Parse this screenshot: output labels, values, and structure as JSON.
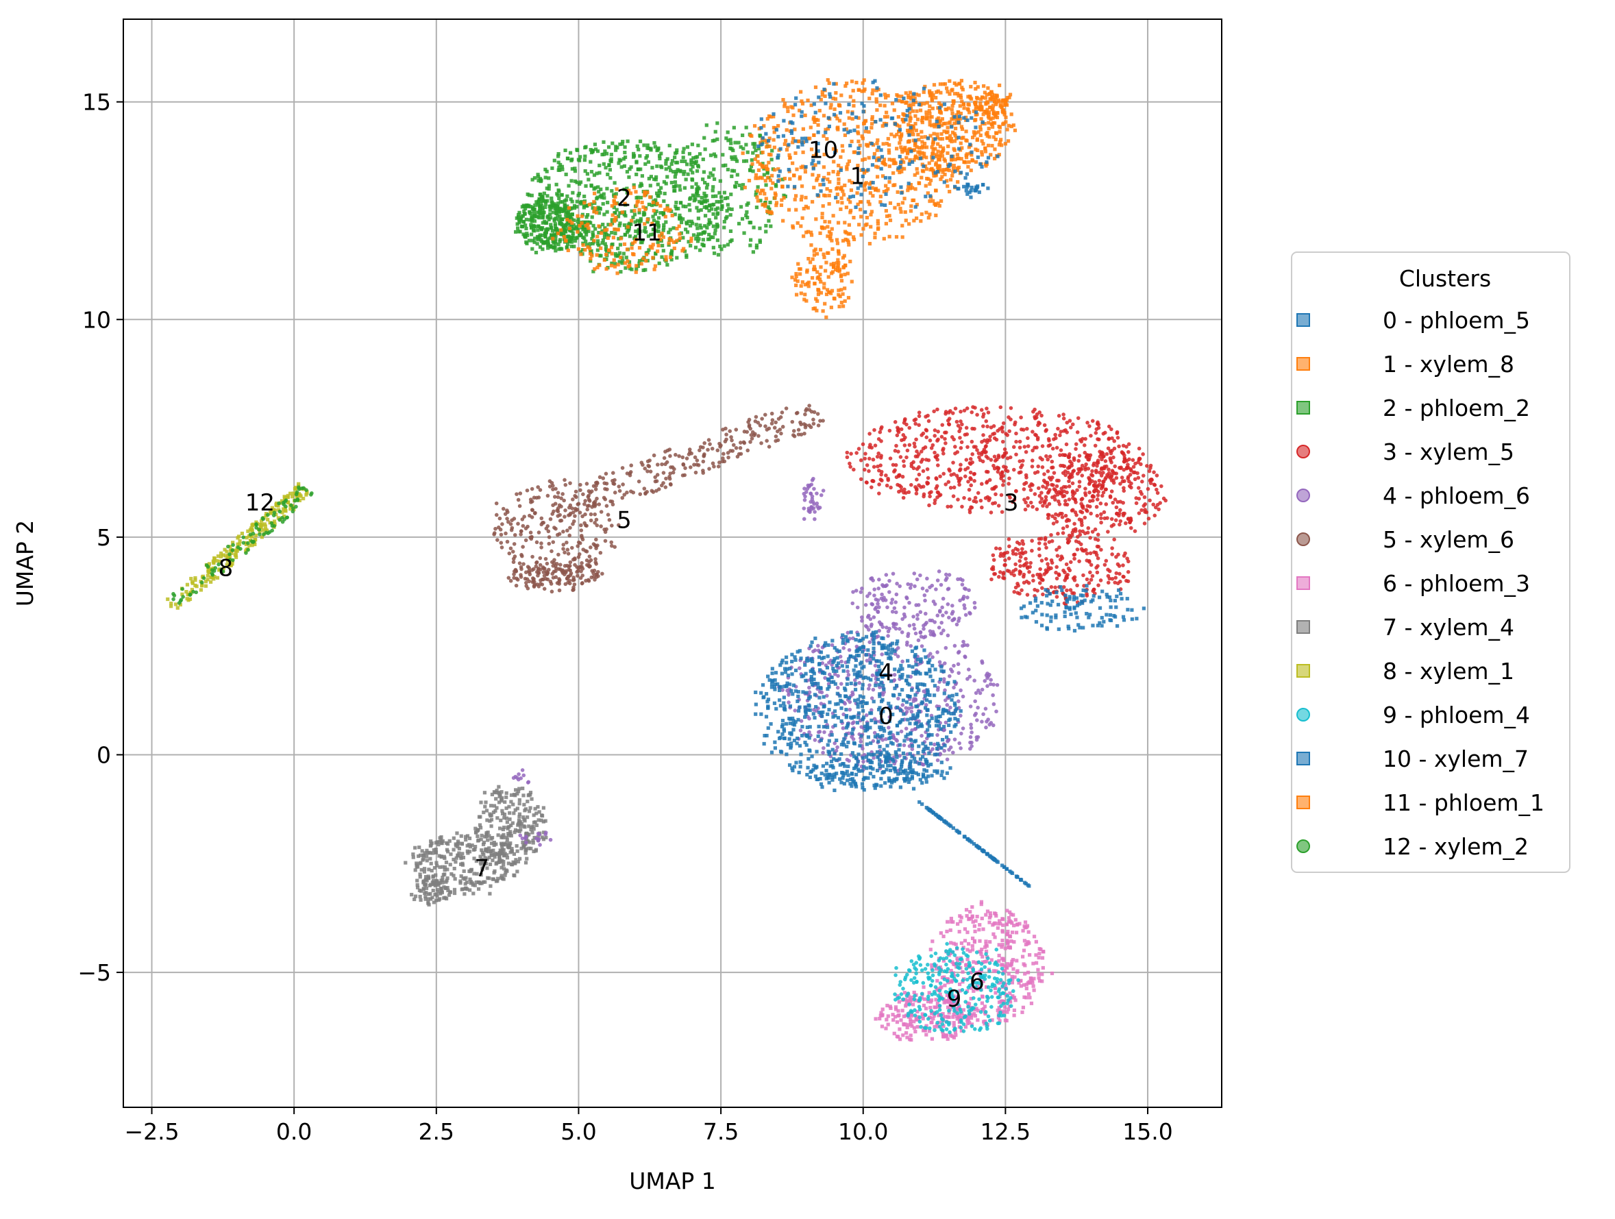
{
  "chart_data": {
    "type": "scatter",
    "xlabel": "UMAP 1",
    "ylabel": "UMAP 2",
    "xlim": [
      -3.0,
      16.3
    ],
    "ylim": [
      -8.1,
      16.9
    ],
    "xticks": [
      -2.5,
      0.0,
      2.5,
      5.0,
      7.5,
      10.0,
      12.5,
      15.0
    ],
    "xtick_labels": [
      "−2.5",
      "0.0",
      "2.5",
      "5.0",
      "7.5",
      "10.0",
      "12.5",
      "15.0"
    ],
    "yticks": [
      -5,
      0,
      5,
      10,
      15
    ],
    "ytick_labels": [
      "−5",
      "0",
      "5",
      "10",
      "15"
    ],
    "grid": true,
    "legend_title": "Clusters",
    "legend_position": "right",
    "series": [
      {
        "id": "0",
        "name": "0 - phloem_5",
        "marker": "square",
        "color": "#1f77b4",
        "label_xy": [
          10.4,
          0.9
        ]
      },
      {
        "id": "1",
        "name": "1 - xylem_8",
        "marker": "square",
        "color": "#ff7f0e",
        "label_xy": [
          9.9,
          13.3
        ]
      },
      {
        "id": "2",
        "name": "2 - phloem_2",
        "marker": "square",
        "color": "#2ca02c",
        "label_xy": [
          5.8,
          12.8
        ]
      },
      {
        "id": "3",
        "name": "3 - xylem_5",
        "marker": "circle",
        "color": "#d62728",
        "label_xy": [
          12.6,
          5.8
        ]
      },
      {
        "id": "4",
        "name": "4 - phloem_6",
        "marker": "circle",
        "color": "#9467bd",
        "label_xy": [
          10.4,
          1.9
        ]
      },
      {
        "id": "5",
        "name": "5 - xylem_6",
        "marker": "circle",
        "color": "#8c564b",
        "label_xy": [
          5.8,
          5.4
        ]
      },
      {
        "id": "6",
        "name": "6 - phloem_3",
        "marker": "square",
        "color": "#e377c2",
        "label_xy": [
          12.0,
          -5.2
        ]
      },
      {
        "id": "7",
        "name": "7 - xylem_4",
        "marker": "square",
        "color": "#7f7f7f",
        "label_xy": [
          3.3,
          -2.6
        ]
      },
      {
        "id": "8",
        "name": "8 - xylem_1",
        "marker": "square",
        "color": "#bcbd22",
        "label_xy": [
          -1.2,
          4.3
        ]
      },
      {
        "id": "9",
        "name": "9 - phloem_4",
        "marker": "circle",
        "color": "#17becf",
        "label_xy": [
          11.6,
          -5.6
        ]
      },
      {
        "id": "10",
        "name": "10 - xylem_7",
        "marker": "square",
        "color": "#1f77b4",
        "label_xy": [
          9.3,
          13.9
        ]
      },
      {
        "id": "11",
        "name": "11 - phloem_1",
        "marker": "square",
        "color": "#ff7f0e",
        "label_xy": [
          6.2,
          12.0
        ]
      },
      {
        "id": "12",
        "name": "12 - xylem_2",
        "marker": "circle",
        "color": "#2ca02c",
        "label_xy": [
          -0.6,
          5.8
        ]
      }
    ],
    "regions": [
      {
        "series": "8",
        "points": 220,
        "shape": "line",
        "x0": -2.15,
        "y0": 3.4,
        "x1": 0.2,
        "y1": 6.1,
        "w": 0.35
      },
      {
        "series": "12",
        "points": 90,
        "shape": "line",
        "x0": -2.1,
        "y0": 3.5,
        "x1": 0.25,
        "y1": 6.1,
        "w": 0.35
      },
      {
        "series": "2",
        "points": 700,
        "shape": "ellipse",
        "cx": 5.8,
        "cy": 12.6,
        "rx": 1.8,
        "ry": 1.5
      },
      {
        "series": "2",
        "points": 260,
        "shape": "ellipse",
        "cx": 4.5,
        "cy": 12.2,
        "rx": 0.6,
        "ry": 0.6
      },
      {
        "series": "2",
        "points": 220,
        "shape": "ellipse",
        "cx": 7.6,
        "cy": 13.0,
        "rx": 1.0,
        "ry": 1.6
      },
      {
        "series": "11",
        "points": 160,
        "shape": "ellipse",
        "cx": 5.8,
        "cy": 12.0,
        "rx": 1.2,
        "ry": 1.0
      },
      {
        "series": "1",
        "points": 650,
        "shape": "ellipse",
        "cx": 9.8,
        "cy": 13.6,
        "rx": 1.9,
        "ry": 1.9
      },
      {
        "series": "1",
        "points": 380,
        "shape": "ellipse",
        "cx": 11.6,
        "cy": 14.4,
        "rx": 1.0,
        "ry": 1.1
      },
      {
        "series": "1",
        "points": 120,
        "shape": "ellipse",
        "cx": 9.3,
        "cy": 10.9,
        "rx": 0.5,
        "ry": 0.8
      },
      {
        "series": "1",
        "points": 60,
        "shape": "ellipse",
        "cx": 12.3,
        "cy": 15.0,
        "rx": 0.3,
        "ry": 0.3
      },
      {
        "series": "10",
        "points": 180,
        "shape": "ellipse",
        "cx": 10.2,
        "cy": 14.0,
        "rx": 2.2,
        "ry": 1.5
      },
      {
        "series": "10",
        "points": 25,
        "shape": "ellipse",
        "cx": 11.9,
        "cy": 13.0,
        "rx": 0.3,
        "ry": 0.2
      },
      {
        "series": "5",
        "points": 240,
        "shape": "ellipse",
        "cx": 4.6,
        "cy": 5.2,
        "rx": 1.1,
        "ry": 1.1
      },
      {
        "series": "5",
        "points": 130,
        "shape": "ellipse",
        "cx": 4.6,
        "cy": 4.1,
        "rx": 0.8,
        "ry": 0.3
      },
      {
        "series": "5",
        "points": 260,
        "shape": "line",
        "x0": 4.6,
        "y0": 5.6,
        "x1": 9.2,
        "y1": 7.9,
        "w": 0.8
      },
      {
        "series": "3",
        "points": 650,
        "shape": "ellipse",
        "cx": 12.3,
        "cy": 6.8,
        "rx": 2.6,
        "ry": 1.2
      },
      {
        "series": "3",
        "points": 300,
        "shape": "ellipse",
        "cx": 14.2,
        "cy": 6.0,
        "rx": 1.1,
        "ry": 1.0
      },
      {
        "series": "3",
        "points": 260,
        "shape": "ellipse",
        "cx": 13.5,
        "cy": 4.3,
        "rx": 1.3,
        "ry": 0.8
      },
      {
        "series": "0",
        "points": 110,
        "shape": "ellipse",
        "cx": 13.8,
        "cy": 3.3,
        "rx": 1.1,
        "ry": 0.5
      },
      {
        "series": "4",
        "points": 170,
        "shape": "ellipse",
        "cx": 10.9,
        "cy": 3.5,
        "rx": 1.1,
        "ry": 0.8
      },
      {
        "series": "4",
        "points": 480,
        "shape": "ellipse",
        "cx": 10.5,
        "cy": 1.3,
        "rx": 1.9,
        "ry": 1.7
      },
      {
        "series": "0",
        "points": 780,
        "shape": "ellipse",
        "cx": 9.9,
        "cy": 1.0,
        "rx": 1.8,
        "ry": 1.8
      },
      {
        "series": "0",
        "points": 110,
        "shape": "ellipse",
        "cx": 10.3,
        "cy": -0.4,
        "rx": 1.3,
        "ry": 0.4
      },
      {
        "series": "4",
        "points": 40,
        "shape": "ellipse",
        "cx": 9.1,
        "cy": 5.9,
        "rx": 0.12,
        "ry": 0.5
      },
      {
        "series": "0",
        "points": 90,
        "shape": "line",
        "x0": 11.0,
        "y0": -1.1,
        "x1": 12.9,
        "y1": -3.0,
        "w": 0.25
      },
      {
        "series": "6",
        "points": 380,
        "shape": "ellipse",
        "cx": 12.2,
        "cy": -4.8,
        "rx": 1.0,
        "ry": 1.4
      },
      {
        "series": "6",
        "points": 200,
        "shape": "ellipse",
        "cx": 11.1,
        "cy": -6.0,
        "rx": 0.8,
        "ry": 0.6
      },
      {
        "series": "9",
        "points": 280,
        "shape": "ellipse",
        "cx": 11.6,
        "cy": -5.4,
        "rx": 1.1,
        "ry": 1.0
      },
      {
        "series": "7",
        "points": 280,
        "shape": "ellipse",
        "cx": 3.0,
        "cy": -2.5,
        "rx": 0.9,
        "ry": 0.7
      },
      {
        "series": "7",
        "points": 230,
        "shape": "ellipse",
        "cx": 3.8,
        "cy": -1.6,
        "rx": 0.6,
        "ry": 0.9
      },
      {
        "series": "7",
        "points": 60,
        "shape": "ellipse",
        "cx": 2.4,
        "cy": -3.1,
        "rx": 0.3,
        "ry": 0.3
      },
      {
        "series": "4",
        "points": 15,
        "shape": "ellipse",
        "cx": 4.3,
        "cy": -1.9,
        "rx": 0.3,
        "ry": 0.15
      },
      {
        "series": "4",
        "points": 10,
        "shape": "ellipse",
        "cx": 4.0,
        "cy": -0.5,
        "rx": 0.1,
        "ry": 0.2
      }
    ]
  }
}
